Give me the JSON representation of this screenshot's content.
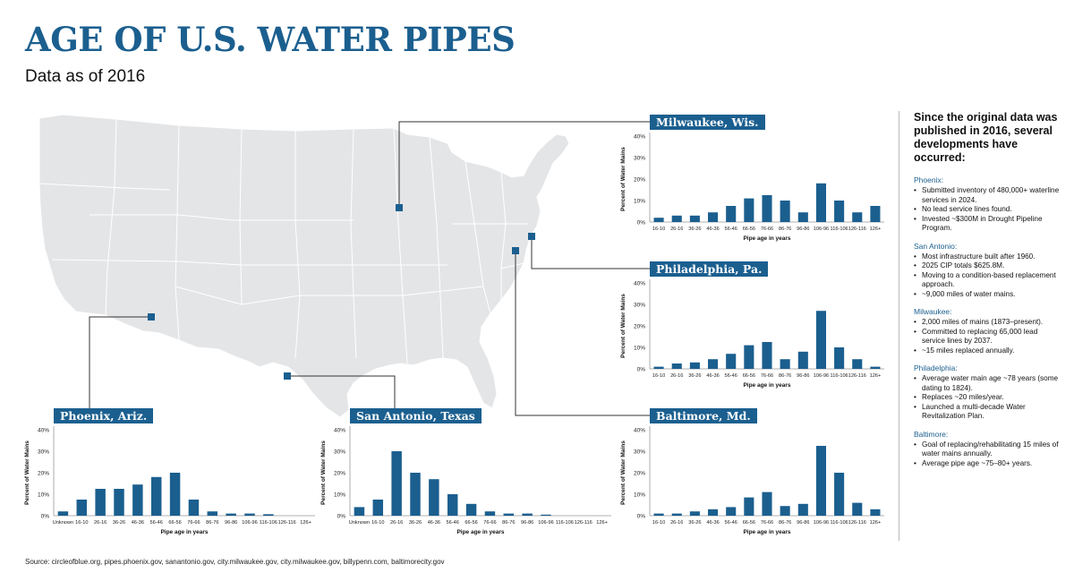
{
  "header": {
    "title": "AGE OF U.S. WATER PIPES",
    "subtitle": "Data as of 2016"
  },
  "colors": {
    "accent": "#1b5f8f",
    "map_fill": "#e4e5e7",
    "map_border": "#ffffff"
  },
  "chart_data": [
    {
      "type": "bar",
      "title": "Milwaukee, Wis.",
      "categories": [
        "16-10",
        "26-16",
        "36-26",
        "46-36",
        "56-46",
        "66-56",
        "76-66",
        "86-76",
        "96-86",
        "106-96",
        "116-106",
        "126-116",
        "126+"
      ],
      "values": [
        2,
        3,
        3,
        4.5,
        7.5,
        11,
        12.5,
        10,
        4.5,
        18,
        10,
        4.5,
        7.5
      ],
      "xlabel": "Pipe age in years",
      "ylabel": "Percent of Water Mains",
      "yticks": [
        "0%",
        "10%",
        "20%",
        "30%",
        "40%"
      ],
      "ylim": [
        0,
        40
      ]
    },
    {
      "type": "bar",
      "title": "Philadelphia, Pa.",
      "categories": [
        "16-10",
        "26-16",
        "36-26",
        "46-36",
        "56-46",
        "66-56",
        "76-66",
        "86-76",
        "96-86",
        "106-96",
        "116-106",
        "126-116",
        "126+"
      ],
      "values": [
        1,
        2.5,
        3,
        4.5,
        7,
        11,
        12.5,
        4.5,
        8,
        27,
        10,
        4.5,
        1
      ],
      "xlabel": "Pipe age in years",
      "ylabel": "Percent of Water Mains",
      "yticks": [
        "0%",
        "10%",
        "20%",
        "30%",
        "40%"
      ],
      "ylim": [
        0,
        40
      ]
    },
    {
      "type": "bar",
      "title": "Phoenix, Ariz.",
      "categories": [
        "Unknown",
        "16-10",
        "26-16",
        "36-26",
        "46-36",
        "56-46",
        "66-56",
        "76-66",
        "86-76",
        "96-86",
        "106-96",
        "116-106",
        "126-116",
        "126+"
      ],
      "values": [
        2,
        7.5,
        12.5,
        12.5,
        14.5,
        18,
        20,
        7.5,
        2,
        1,
        1,
        0.7,
        0,
        0
      ],
      "xlabel": "Pipe age in years",
      "ylabel": "Percent of Water Mains",
      "yticks": [
        "0%",
        "10%",
        "20%",
        "30%",
        "40%"
      ],
      "ylim": [
        0,
        40
      ]
    },
    {
      "type": "bar",
      "title": "San Antonio, Texas",
      "categories": [
        "Unknown",
        "16-10",
        "26-16",
        "36-26",
        "46-36",
        "56-46",
        "66-56",
        "76-66",
        "86-76",
        "96-86",
        "106-96",
        "116-106",
        "126-116",
        "126+"
      ],
      "values": [
        4,
        7.5,
        30,
        20,
        17,
        10,
        5.5,
        2,
        1,
        1,
        0.5,
        0,
        0,
        0
      ],
      "xlabel": "Pipe age in years",
      "ylabel": "Percent of Water Mains",
      "yticks": [
        "0%",
        "10%",
        "20%",
        "30%",
        "40%"
      ],
      "ylim": [
        0,
        40
      ]
    },
    {
      "type": "bar",
      "title": "Baltimore, Md.",
      "categories": [
        "16-10",
        "26-16",
        "36-26",
        "46-36",
        "56-46",
        "66-56",
        "76-66",
        "86-76",
        "96-86",
        "106-96",
        "116-106",
        "126-116",
        "126+"
      ],
      "values": [
        1,
        1,
        2,
        3,
        4,
        8.5,
        11,
        4.5,
        5.5,
        32.5,
        20,
        6,
        3
      ],
      "xlabel": "Pipe age in years",
      "ylabel": "Percent of Water Mains",
      "yticks": [
        "0%",
        "10%",
        "20%",
        "30%",
        "40%"
      ],
      "ylim": [
        0,
        40
      ]
    }
  ],
  "sidebar": {
    "heading": "Since the original data was published in 2016, several developments have occurred:",
    "sections": [
      {
        "city": "Phoenix:",
        "bullets": [
          "Submitted inventory of 480,000+ waterline services in 2024.",
          "No lead service lines found.",
          "Invested ~$300M in Drought Pipeline Program."
        ]
      },
      {
        "city": "San Antonio:",
        "bullets": [
          "Most infrastructure built after 1960.",
          "2025 CIP totals $625.8M.",
          "Moving to a condition-based replacement approach.",
          "~9,000 miles of water mains."
        ]
      },
      {
        "city": "Milwaukee:",
        "bullets": [
          "2,000 miles of mains (1873–present).",
          "Committed to replacing 65,000 lead service lines by 2037.",
          "~15 miles replaced annually."
        ]
      },
      {
        "city": "Philadelphia:",
        "bullets": [
          "Average water main age ~78 years (some dating to 1824).",
          "Replaces ~20 miles/year.",
          "Launched a multi-decade Water Revitalization Plan."
        ]
      },
      {
        "city": "Baltimore:",
        "bullets": [
          "Goal of replacing/rehabilitating 15 miles of water mains annually.",
          "Average pipe age ~75–80+ years."
        ]
      }
    ]
  },
  "footer": {
    "source": "Source: circleofblue.org, pipes.phoenix.gov, sanantonio.gov, city.milwaukee.gov, city.milwaukee.gov, billypenn.com, baltimorecity.gov"
  }
}
